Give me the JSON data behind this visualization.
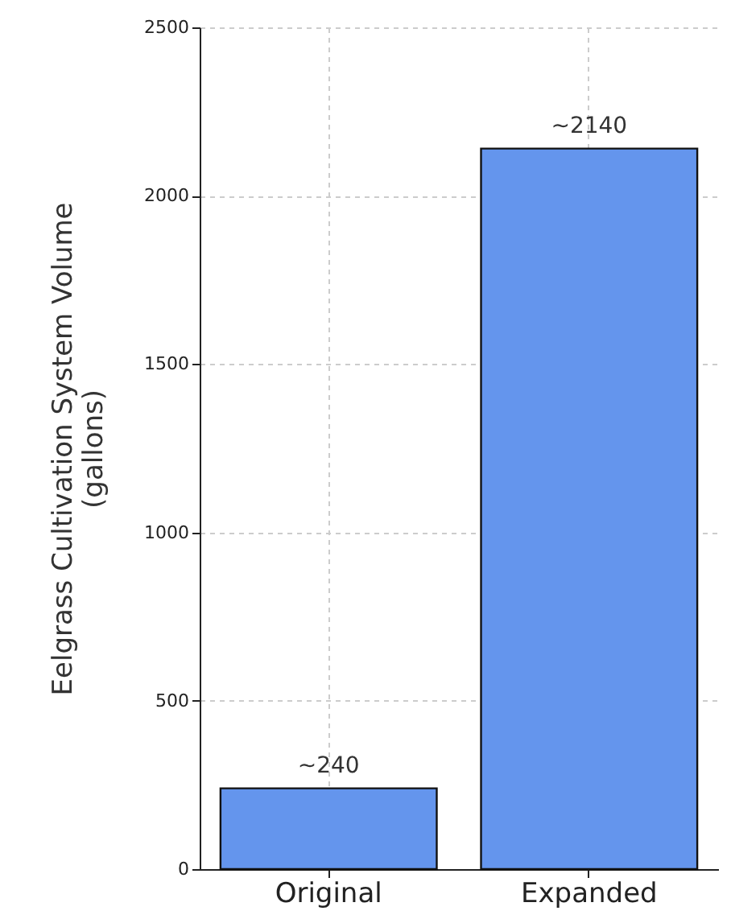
{
  "chart_data": {
    "type": "bar",
    "ylabel": "Eelgrass Cultivation System Volume\n(gallons)",
    "categories": [
      "Original",
      "Expanded"
    ],
    "values": [
      240,
      2140
    ],
    "color": "#6495ed",
    "value_labels": [
      "~240",
      "~2140"
    ],
    "ylim": [
      0,
      2500
    ],
    "yticks": [
      0,
      500,
      1000,
      1500,
      2000,
      2500
    ],
    "grid": true
  }
}
